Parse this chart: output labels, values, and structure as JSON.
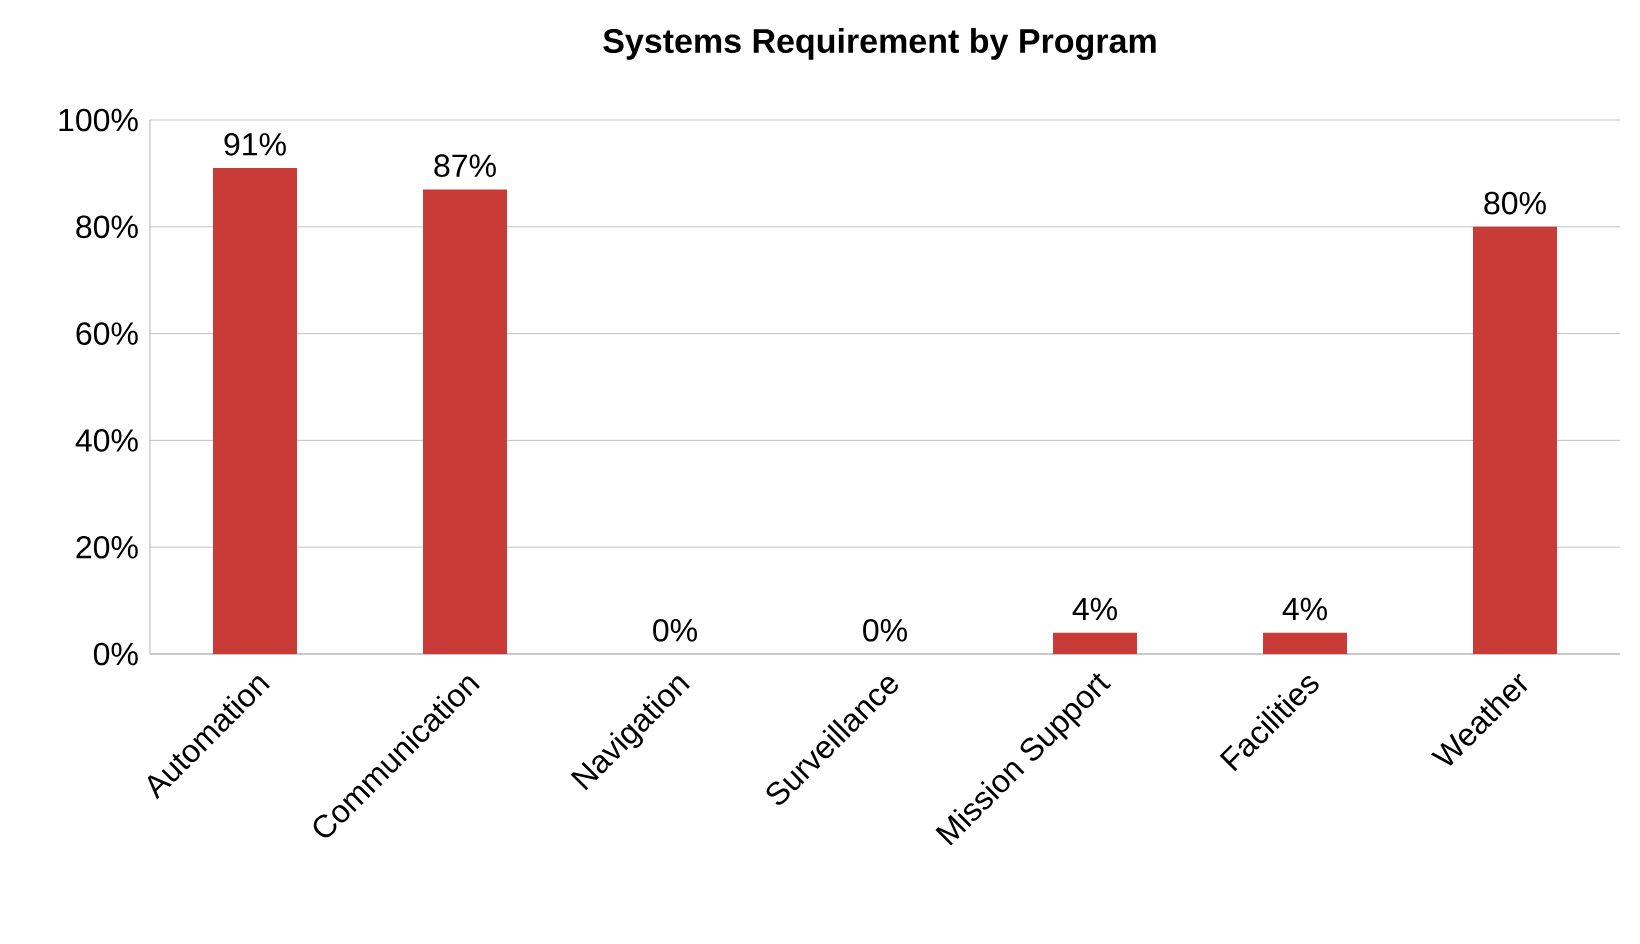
{
  "chart_data": {
    "type": "bar",
    "title": "Systems Requirement by Program",
    "categories": [
      "Automation",
      "Communication",
      "Navigation",
      "Surveillance",
      "Mission Support",
      "Facilities",
      "Weather"
    ],
    "values": [
      91,
      87,
      0,
      0,
      4,
      4,
      80
    ],
    "value_labels": [
      "91%",
      "87%",
      "0%",
      "0%",
      "4%",
      "4%",
      "80%"
    ],
    "color": "#c83b36",
    "ylim": [
      0,
      100
    ],
    "yticks": [
      {
        "value": 0,
        "label": "0%"
      },
      {
        "value": 20,
        "label": "20%"
      },
      {
        "value": 40,
        "label": "40%"
      },
      {
        "value": 60,
        "label": "60%"
      },
      {
        "value": 80,
        "label": "80%"
      },
      {
        "value": 100,
        "label": "100%"
      }
    ],
    "grid": "y"
  }
}
